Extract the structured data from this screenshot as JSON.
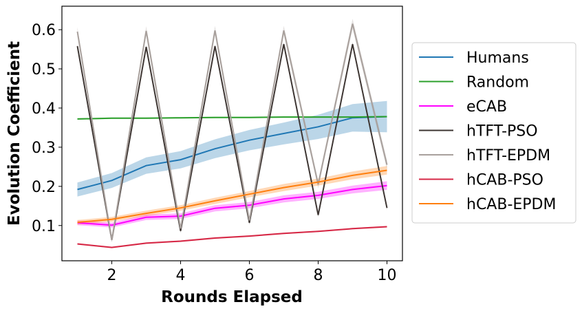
{
  "chart_data": {
    "type": "line",
    "title": "",
    "xlabel": "Rounds Elapsed",
    "ylabel": "Evolution Coefficient",
    "xlim": [
      0.55,
      10.45
    ],
    "ylim": [
      0.01,
      0.66
    ],
    "xticks": [
      2,
      4,
      6,
      8,
      10
    ],
    "yticks": [
      0.1,
      0.2,
      0.3,
      0.4,
      0.5,
      0.6
    ],
    "ytick_labels": [
      "0.1",
      "0.2",
      "0.3",
      "0.4",
      "0.5",
      "0.6"
    ],
    "grid": false,
    "legend_position": "outside-right",
    "x": [
      1,
      2,
      3,
      4,
      5,
      6,
      7,
      8,
      9,
      10
    ],
    "series": [
      {
        "name": "Humans",
        "color": "#1f77b4",
        "values": [
          0.192,
          0.215,
          0.253,
          0.268,
          0.296,
          0.318,
          0.335,
          0.352,
          0.375,
          0.378
        ],
        "band": [
          0.018,
          0.019,
          0.021,
          0.022,
          0.024,
          0.026,
          0.028,
          0.031,
          0.035,
          0.04
        ]
      },
      {
        "name": "Random",
        "color": "#2ca02c",
        "values": [
          0.372,
          0.374,
          0.374,
          0.375,
          0.376,
          0.376,
          0.377,
          0.377,
          0.377,
          0.378
        ],
        "band": [
          0.002,
          0.002,
          0.002,
          0.002,
          0.002,
          0.002,
          0.002,
          0.002,
          0.002,
          0.002
        ]
      },
      {
        "name": "eCAB",
        "color": "#ff00ff",
        "values": [
          0.107,
          0.101,
          0.121,
          0.124,
          0.144,
          0.152,
          0.168,
          0.177,
          0.192,
          0.202
        ],
        "band": [
          0.006,
          0.006,
          0.007,
          0.007,
          0.008,
          0.008,
          0.009,
          0.009,
          0.01,
          0.011
        ]
      },
      {
        "name": "hTFT-PSO",
        "color": "#3d3532",
        "values": [
          0.558,
          0.063,
          0.556,
          0.086,
          0.558,
          0.107,
          0.563,
          0.127,
          0.563,
          0.145
        ],
        "band": [
          0.005,
          0.005,
          0.005,
          0.005,
          0.005,
          0.005,
          0.005,
          0.005,
          0.005,
          0.005
        ]
      },
      {
        "name": "hTFT-EPDM",
        "color": "#a8a09c",
        "values": [
          0.595,
          0.063,
          0.597,
          0.092,
          0.598,
          0.113,
          0.598,
          0.205,
          0.615,
          0.255
        ],
        "band": [
          0.012,
          0.005,
          0.012,
          0.008,
          0.012,
          0.008,
          0.012,
          0.01,
          0.013,
          0.012
        ]
      },
      {
        "name": "hCAB-PSO",
        "color": "#d62745",
        "values": [
          0.053,
          0.044,
          0.055,
          0.06,
          0.068,
          0.073,
          0.08,
          0.085,
          0.092,
          0.097
        ],
        "band": [
          0.002,
          0.002,
          0.002,
          0.002,
          0.002,
          0.002,
          0.002,
          0.002,
          0.002,
          0.002
        ]
      },
      {
        "name": "hCAB-EPDM",
        "color": "#ff7f0e",
        "values": [
          0.108,
          0.116,
          0.131,
          0.145,
          0.163,
          0.18,
          0.197,
          0.211,
          0.228,
          0.241
        ],
        "band": [
          0.006,
          0.006,
          0.007,
          0.007,
          0.008,
          0.008,
          0.009,
          0.009,
          0.01,
          0.011
        ]
      }
    ]
  }
}
